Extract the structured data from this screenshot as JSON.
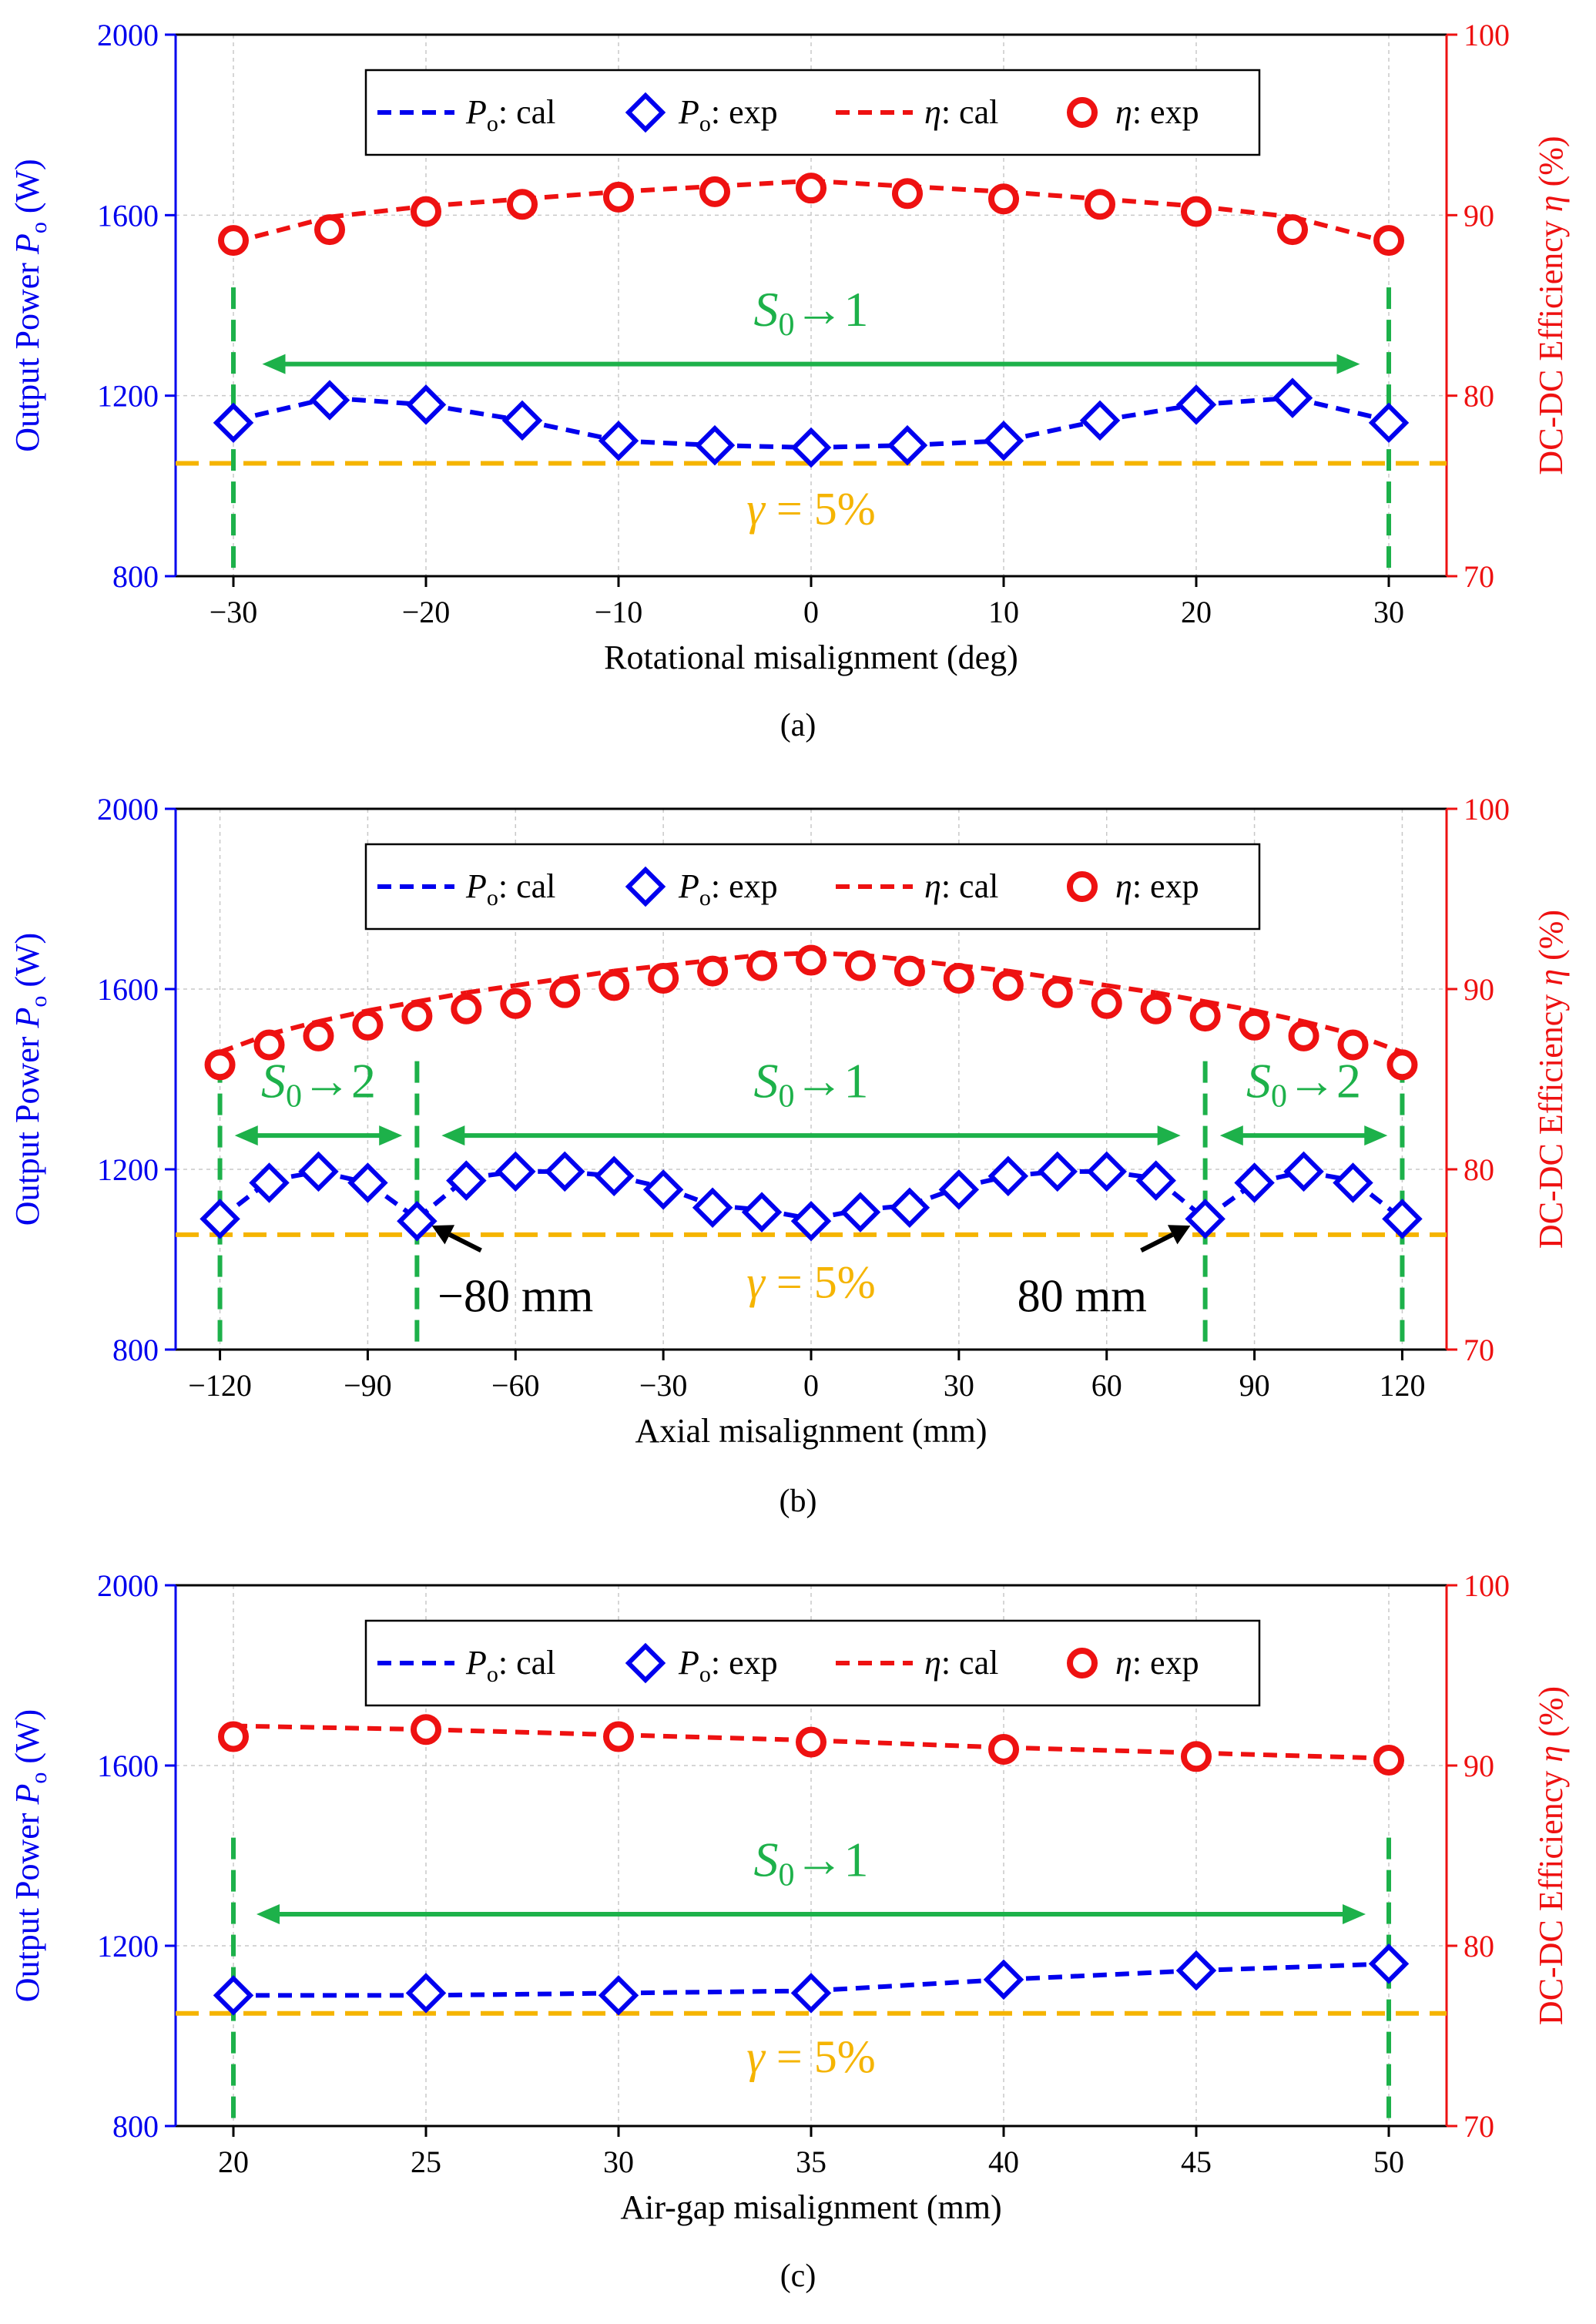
{
  "colors": {
    "power": "#0000ee",
    "eff": "#ee1111",
    "green": "#1db14a",
    "gamma": "#f5b400",
    "axis": "#000000",
    "grid": "#c8c8c8"
  },
  "chart_data": [
    {
      "type": "line",
      "panel_label": "(a)",
      "xlabel": "Rotational misalignment (deg)",
      "ylabel_left": {
        "main": "Output Power ",
        "sym": "P",
        "sub": "o",
        "unit": " (W)"
      },
      "ylabel_right": {
        "main": "DC-DC Efficiency ",
        "sym": "η",
        "unit": " (%)"
      },
      "xlim": [
        -33,
        33
      ],
      "ylim_left": [
        800,
        2000
      ],
      "ylim_right": [
        70,
        100
      ],
      "xticks": [
        -30,
        -20,
        -10,
        0,
        10,
        20,
        30
      ],
      "xtick_labels": [
        "−30",
        "−20",
        "−10",
        "0",
        "10",
        "20",
        "30"
      ],
      "yticks_left": [
        800,
        1200,
        1600,
        2000
      ],
      "yticks_left_labels": [
        "800",
        "1200",
        "1600",
        "2000"
      ],
      "yticks_right": [
        70,
        80,
        90,
        100
      ],
      "yticks_right_labels": [
        "70",
        "80",
        "90",
        "100"
      ],
      "legend": [
        {
          "sym": "P",
          "sub": "o",
          "text": ": cal",
          "kind": "line-power"
        },
        {
          "sym": "P",
          "sub": "o",
          "text": ": exp",
          "kind": "marker-power"
        },
        {
          "sym": "η",
          "sub": "",
          "text": ": cal",
          "kind": "line-eff"
        },
        {
          "sym": "η",
          "sub": "",
          "text": ": exp",
          "kind": "marker-eff"
        }
      ],
      "series": [
        {
          "name": "Po: cal",
          "axis": "left",
          "style": "dashed-line",
          "x": [
            -30,
            -25,
            -20,
            -15,
            -10,
            -5,
            0,
            5,
            10,
            15,
            20,
            25,
            30
          ],
          "values": [
            1145,
            1195,
            1180,
            1145,
            1100,
            1090,
            1085,
            1090,
            1100,
            1145,
            1180,
            1195,
            1145
          ]
        },
        {
          "name": "Po: exp",
          "axis": "left",
          "style": "diamond",
          "x": [
            -30,
            -25,
            -20,
            -15,
            -10,
            -5,
            0,
            5,
            10,
            15,
            20,
            25,
            30
          ],
          "values": [
            1140,
            1190,
            1180,
            1145,
            1100,
            1090,
            1085,
            1090,
            1100,
            1145,
            1180,
            1195,
            1140
          ]
        },
        {
          "name": "η: cal",
          "axis": "right",
          "style": "dashed-line",
          "x": [
            -30,
            -25,
            -20,
            -15,
            -10,
            -5,
            0,
            5,
            10,
            15,
            20,
            25,
            30
          ],
          "values": [
            88.5,
            89.9,
            90.5,
            90.9,
            91.3,
            91.6,
            91.9,
            91.6,
            91.3,
            90.9,
            90.5,
            89.9,
            88.5
          ]
        },
        {
          "name": "η: exp",
          "axis": "right",
          "style": "circle",
          "x": [
            -30,
            -25,
            -20,
            -15,
            -10,
            -5,
            0,
            5,
            10,
            15,
            20,
            25,
            30
          ],
          "values": [
            88.6,
            89.2,
            90.2,
            90.6,
            91.0,
            91.3,
            91.5,
            91.2,
            90.9,
            90.6,
            90.2,
            89.2,
            88.6
          ]
        }
      ],
      "gamma_line": {
        "y": 1050,
        "label_sym": "γ",
        "label_text": " = 5%",
        "label_x": 0,
        "label_y": 915
      },
      "vlines": [
        -30,
        30
      ],
      "arrows": [
        {
          "x1": -28.5,
          "x2": 28.5,
          "y": 1270,
          "label_sym": "S",
          "label_sub": "0",
          "label_text": "→1",
          "label_x": 0,
          "label_y": 1355
        }
      ],
      "annotations": []
    },
    {
      "type": "line",
      "panel_label": "(b)",
      "xlabel": "Axial misalignment (mm)",
      "ylabel_left": {
        "main": "Output Power ",
        "sym": "P",
        "sub": "o",
        "unit": " (W)"
      },
      "ylabel_right": {
        "main": "DC-DC Efficiency ",
        "sym": "η",
        "unit": " (%)"
      },
      "xlim": [
        -129,
        129
      ],
      "ylim_left": [
        800,
        2000
      ],
      "ylim_right": [
        70,
        100
      ],
      "xticks": [
        -120,
        -90,
        -60,
        -30,
        0,
        30,
        60,
        90,
        120
      ],
      "xtick_labels": [
        "−120",
        "−90",
        "−60",
        "−30",
        "0",
        "30",
        "60",
        "90",
        "120"
      ],
      "yticks_left": [
        800,
        1200,
        1600,
        2000
      ],
      "yticks_left_labels": [
        "800",
        "1200",
        "1600",
        "2000"
      ],
      "yticks_right": [
        70,
        80,
        90,
        100
      ],
      "yticks_right_labels": [
        "70",
        "80",
        "90",
        "100"
      ],
      "legend": [
        {
          "sym": "P",
          "sub": "o",
          "text": ": cal",
          "kind": "line-power"
        },
        {
          "sym": "P",
          "sub": "o",
          "text": ": exp",
          "kind": "marker-power"
        },
        {
          "sym": "η",
          "sub": "",
          "text": ": cal",
          "kind": "line-eff"
        },
        {
          "sym": "η",
          "sub": "",
          "text": ": exp",
          "kind": "marker-eff"
        }
      ],
      "series": [
        {
          "name": "Po: cal",
          "axis": "left",
          "style": "dashed-line",
          "x": [
            -120,
            -110,
            -100,
            -90,
            -80,
            -70,
            -60,
            -50,
            -40,
            -30,
            -20,
            -10,
            0,
            10,
            20,
            30,
            40,
            50,
            60,
            70,
            80,
            90,
            100,
            110,
            120
          ],
          "values": [
            1090,
            1175,
            1195,
            1170,
            1090,
            1180,
            1195,
            1195,
            1185,
            1160,
            1120,
            1110,
            1090,
            1110,
            1120,
            1160,
            1185,
            1195,
            1195,
            1180,
            1090,
            1170,
            1195,
            1175,
            1090
          ]
        },
        {
          "name": "Po: exp",
          "axis": "left",
          "style": "diamond",
          "x": [
            -120,
            -110,
            -100,
            -90,
            -80,
            -70,
            -60,
            -50,
            -40,
            -30,
            -20,
            -10,
            0,
            10,
            20,
            30,
            40,
            50,
            60,
            70,
            80,
            90,
            100,
            110,
            120
          ],
          "values": [
            1090,
            1170,
            1195,
            1170,
            1085,
            1175,
            1195,
            1195,
            1185,
            1155,
            1115,
            1105,
            1085,
            1105,
            1115,
            1155,
            1185,
            1195,
            1195,
            1175,
            1090,
            1170,
            1195,
            1170,
            1090
          ]
        },
        {
          "name": "η: cal",
          "axis": "right",
          "style": "dashed-line",
          "x": [
            -120,
            -110,
            -100,
            -90,
            -80,
            -70,
            -60,
            -50,
            -40,
            -30,
            -20,
            -10,
            0,
            10,
            20,
            30,
            40,
            50,
            60,
            70,
            80,
            90,
            100,
            110,
            120
          ],
          "values": [
            86.5,
            87.5,
            88.2,
            88.8,
            89.3,
            89.8,
            90.2,
            90.6,
            91.0,
            91.3,
            91.6,
            91.9,
            92.0,
            91.9,
            91.6,
            91.3,
            91.0,
            90.6,
            90.2,
            89.8,
            89.3,
            88.8,
            88.2,
            87.5,
            86.5
          ]
        },
        {
          "name": "η: exp",
          "axis": "right",
          "style": "circle",
          "x": [
            -120,
            -110,
            -100,
            -90,
            -80,
            -70,
            -60,
            -50,
            -40,
            -30,
            -20,
            -10,
            0,
            10,
            20,
            30,
            40,
            50,
            60,
            70,
            80,
            90,
            100,
            110,
            120
          ],
          "values": [
            85.8,
            86.9,
            87.4,
            88.0,
            88.5,
            88.9,
            89.2,
            89.8,
            90.2,
            90.6,
            91.0,
            91.3,
            91.6,
            91.3,
            91.0,
            90.6,
            90.2,
            89.8,
            89.2,
            88.9,
            88.5,
            88.0,
            87.4,
            86.9,
            85.8
          ]
        }
      ],
      "gamma_line": {
        "y": 1055,
        "label_sym": "γ",
        "label_text": " = 5%",
        "label_x": 0,
        "label_y": 915
      },
      "vlines": [
        -120,
        -80,
        80,
        120
      ],
      "arrows": [
        {
          "x1": -117,
          "x2": -83,
          "y": 1275,
          "label_sym": "S",
          "label_sub": "0",
          "label_text": "→2",
          "label_x": -100,
          "label_y": 1360
        },
        {
          "x1": -75,
          "x2": 75,
          "y": 1275,
          "label_sym": "S",
          "label_sub": "0",
          "label_text": "→1",
          "label_x": 0,
          "label_y": 1360
        },
        {
          "x1": 83,
          "x2": 117,
          "y": 1275,
          "label_sym": "S",
          "label_sub": "0",
          "label_text": "→2",
          "label_x": 100,
          "label_y": 1360
        }
      ],
      "annotations": [
        {
          "text": "−80 mm",
          "text_x": -60,
          "text_y": 885,
          "tip_x": -77,
          "tip_y": 1075,
          "tail_x": -67,
          "tail_y": 1020
        },
        {
          "text": "80 mm",
          "text_x": 55,
          "text_y": 885,
          "tip_x": 77,
          "tip_y": 1075,
          "tail_x": 67,
          "tail_y": 1020
        }
      ]
    },
    {
      "type": "line",
      "panel_label": "(c)",
      "xlabel": "Air-gap misalignment (mm)",
      "ylabel_left": {
        "main": "Output Power ",
        "sym": "P",
        "sub": "o",
        "unit": " (W)"
      },
      "ylabel_right": {
        "main": "DC-DC Efficiency ",
        "sym": "η",
        "unit": " (%)"
      },
      "xlim": [
        18.5,
        51.5
      ],
      "ylim_left": [
        800,
        2000
      ],
      "ylim_right": [
        70,
        100
      ],
      "xticks": [
        20,
        25,
        30,
        35,
        40,
        45,
        50
      ],
      "xtick_labels": [
        "20",
        "25",
        "30",
        "35",
        "40",
        "45",
        "50"
      ],
      "yticks_left": [
        800,
        1200,
        1600,
        2000
      ],
      "yticks_left_labels": [
        "800",
        "1200",
        "1600",
        "2000"
      ],
      "yticks_right": [
        70,
        80,
        90,
        100
      ],
      "yticks_right_labels": [
        "70",
        "80",
        "90",
        "100"
      ],
      "legend": [
        {
          "sym": "P",
          "sub": "o",
          "text": ": cal",
          "kind": "line-power"
        },
        {
          "sym": "P",
          "sub": "o",
          "text": ": exp",
          "kind": "marker-power"
        },
        {
          "sym": "η",
          "sub": "",
          "text": ": cal",
          "kind": "line-eff"
        },
        {
          "sym": "η",
          "sub": "",
          "text": ": exp",
          "kind": "marker-eff"
        }
      ],
      "series": [
        {
          "name": "Po: cal",
          "axis": "left",
          "style": "dashed-line",
          "x": [
            20,
            25,
            30,
            35,
            40,
            45,
            50
          ],
          "values": [
            1090,
            1090,
            1095,
            1100,
            1125,
            1145,
            1160
          ]
        },
        {
          "name": "Po: exp",
          "axis": "left",
          "style": "diamond",
          "x": [
            20,
            25,
            30,
            35,
            40,
            45,
            50
          ],
          "values": [
            1090,
            1095,
            1090,
            1095,
            1125,
            1145,
            1160
          ]
        },
        {
          "name": "η: cal",
          "axis": "right",
          "style": "dashed-line",
          "x": [
            20,
            25,
            30,
            35,
            40,
            45,
            50
          ],
          "values": [
            92.2,
            92.0,
            91.7,
            91.4,
            91.0,
            90.7,
            90.4
          ]
        },
        {
          "name": "η: exp",
          "axis": "right",
          "style": "circle",
          "x": [
            20,
            25,
            30,
            35,
            40,
            45,
            50
          ],
          "values": [
            91.6,
            92.0,
            91.6,
            91.3,
            90.9,
            90.5,
            90.3
          ]
        }
      ],
      "gamma_line": {
        "y": 1050,
        "label_sym": "γ",
        "label_text": " = 5%",
        "label_x": 35,
        "label_y": 920
      },
      "vlines": [
        20,
        50
      ],
      "arrows": [
        {
          "x1": 20.6,
          "x2": 49.4,
          "y": 1270,
          "label_sym": "S",
          "label_sub": "0",
          "label_text": "→1",
          "label_x": 35,
          "label_y": 1355
        }
      ],
      "annotations": []
    }
  ]
}
